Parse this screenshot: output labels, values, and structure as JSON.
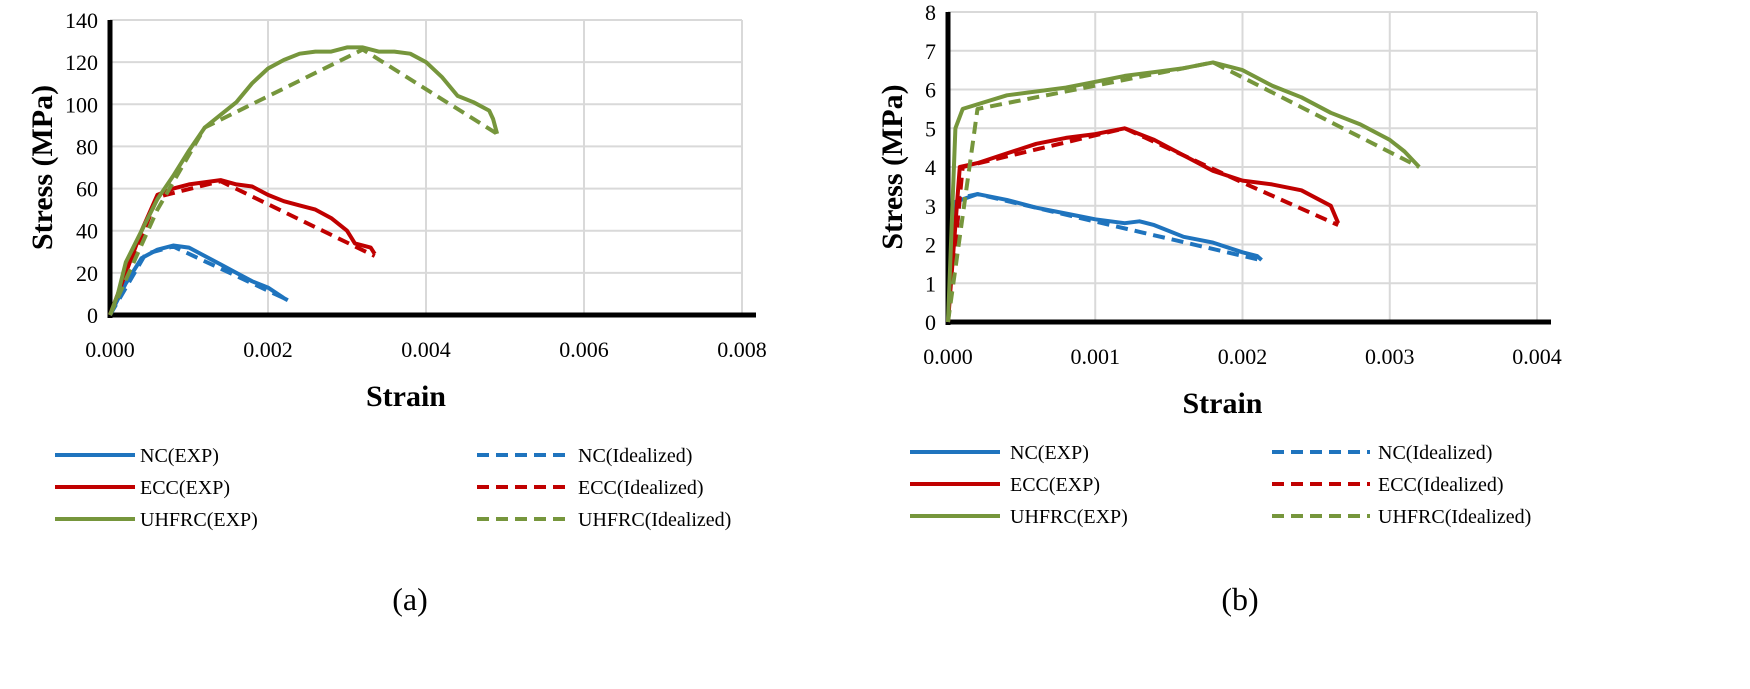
{
  "colors": {
    "NC": "#1F74BE",
    "ECC": "#C00000",
    "UHFRC": "#76963C",
    "grid": "#D9D9D9"
  },
  "chart_data": [
    {
      "type": "line",
      "caption": "(a)",
      "xlabel": "Strain",
      "ylabel": "Stress (MPa)",
      "xlim": [
        0,
        0.008
      ],
      "ylim": [
        0,
        140
      ],
      "xticks": [
        "0.000",
        "0.002",
        "0.004",
        "0.006",
        "0.008"
      ],
      "yticks": [
        "0",
        "20",
        "40",
        "60",
        "80",
        "100",
        "120",
        "140"
      ],
      "grid": true,
      "legend_placement": "bottom",
      "series": [
        {
          "name": "NC(EXP)",
          "group": "NC",
          "dashed": false,
          "points": [
            [
              0,
              0
            ],
            [
              0.0002,
              15
            ],
            [
              0.0004,
              27
            ],
            [
              0.0006,
              31
            ],
            [
              0.0008,
              33
            ],
            [
              0.001,
              32
            ],
            [
              0.0012,
              28
            ],
            [
              0.0014,
              24
            ],
            [
              0.0016,
              20
            ],
            [
              0.0018,
              16
            ],
            [
              0.002,
              13
            ],
            [
              0.0022,
              8
            ],
            [
              0.00225,
              7
            ]
          ]
        },
        {
          "name": "NC(Idealized)",
          "group": "NC",
          "dashed": true,
          "points": [
            [
              0,
              0
            ],
            [
              0.00045,
              29
            ],
            [
              0.0008,
              32.5
            ],
            [
              0.0022,
              8
            ]
          ]
        },
        {
          "name": "ECC(EXP)",
          "group": "ECC",
          "dashed": false,
          "points": [
            [
              0,
              0
            ],
            [
              0.0002,
              20
            ],
            [
              0.0004,
              40
            ],
            [
              0.0006,
              57
            ],
            [
              0.0008,
              60
            ],
            [
              0.001,
              62
            ],
            [
              0.0014,
              64
            ],
            [
              0.0016,
              62
            ],
            [
              0.0018,
              61
            ],
            [
              0.002,
              57
            ],
            [
              0.0022,
              54
            ],
            [
              0.0024,
              52
            ],
            [
              0.0026,
              50
            ],
            [
              0.0028,
              46
            ],
            [
              0.003,
              40
            ],
            [
              0.0031,
              34
            ],
            [
              0.0033,
              32
            ],
            [
              0.00335,
              29
            ]
          ]
        },
        {
          "name": "ECC(Idealized)",
          "group": "ECC",
          "dashed": true,
          "points": [
            [
              0,
              0
            ],
            [
              0.0006,
              56
            ],
            [
              0.0014,
              63.5
            ],
            [
              0.00335,
              28
            ]
          ]
        },
        {
          "name": "UHFRC(EXP)",
          "group": "UHFRC",
          "dashed": false,
          "points": [
            [
              0,
              0
            ],
            [
              0.0001,
              10
            ],
            [
              0.0002,
              25
            ],
            [
              0.0004,
              40
            ],
            [
              0.0006,
              55
            ],
            [
              0.0008,
              66
            ],
            [
              0.001,
              78
            ],
            [
              0.0012,
              89
            ],
            [
              0.0014,
              95
            ],
            [
              0.0016,
              101
            ],
            [
              0.0018,
              110
            ],
            [
              0.002,
              117
            ],
            [
              0.0022,
              121
            ],
            [
              0.0024,
              124
            ],
            [
              0.0026,
              125
            ],
            [
              0.0028,
              125
            ],
            [
              0.003,
              127
            ],
            [
              0.0032,
              127
            ],
            [
              0.0034,
              125
            ],
            [
              0.0036,
              125
            ],
            [
              0.0038,
              124
            ],
            [
              0.004,
              120
            ],
            [
              0.0042,
              113
            ],
            [
              0.0044,
              104
            ],
            [
              0.0046,
              101
            ],
            [
              0.0048,
              97
            ],
            [
              0.00485,
              93
            ],
            [
              0.0049,
              86
            ]
          ]
        },
        {
          "name": "UHFRC(Idealized)",
          "group": "UHFRC",
          "dashed": true,
          "points": [
            [
              0,
              0
            ],
            [
              0.0006,
              50
            ],
            [
              0.0012,
              89
            ],
            [
              0.0032,
              126
            ],
            [
              0.0049,
              86
            ]
          ]
        }
      ]
    },
    {
      "type": "line",
      "caption": "(b)",
      "xlabel": "Strain",
      "ylabel": "Stress (MPa)",
      "xlim": [
        0,
        0.004
      ],
      "ylim": [
        0,
        8
      ],
      "xticks": [
        "0.000",
        "0.001",
        "0.002",
        "0.003",
        "0.004"
      ],
      "yticks": [
        "0",
        "1",
        "2",
        "3",
        "4",
        "5",
        "6",
        "7",
        "8"
      ],
      "grid": true,
      "legend_placement": "bottom",
      "series": [
        {
          "name": "NC(EXP)",
          "group": "NC",
          "dashed": false,
          "points": [
            [
              0,
              0
            ],
            [
              5e-05,
              3.1
            ],
            [
              0.0002,
              3.3
            ],
            [
              0.0004,
              3.15
            ],
            [
              0.0006,
              2.95
            ],
            [
              0.0008,
              2.8
            ],
            [
              0.001,
              2.65
            ],
            [
              0.0012,
              2.55
            ],
            [
              0.0013,
              2.6
            ],
            [
              0.0014,
              2.5
            ],
            [
              0.0016,
              2.2
            ],
            [
              0.0018,
              2.05
            ],
            [
              0.002,
              1.8
            ],
            [
              0.0021,
              1.7
            ],
            [
              0.00213,
              1.6
            ]
          ]
        },
        {
          "name": "NC(Idealized)",
          "group": "NC",
          "dashed": true,
          "points": [
            [
              0,
              0
            ],
            [
              8e-05,
              3.2
            ],
            [
              0.0002,
              3.3
            ],
            [
              0.00212,
              1.6
            ]
          ]
        },
        {
          "name": "ECC(EXP)",
          "group": "ECC",
          "dashed": false,
          "points": [
            [
              0,
              0
            ],
            [
              8e-05,
              4.0
            ],
            [
              0.0002,
              4.1
            ],
            [
              0.0004,
              4.35
            ],
            [
              0.0006,
              4.6
            ],
            [
              0.0008,
              4.75
            ],
            [
              0.001,
              4.85
            ],
            [
              0.0012,
              5.0
            ],
            [
              0.0014,
              4.7
            ],
            [
              0.0016,
              4.3
            ],
            [
              0.0018,
              3.9
            ],
            [
              0.002,
              3.65
            ],
            [
              0.0022,
              3.55
            ],
            [
              0.0024,
              3.4
            ],
            [
              0.0026,
              3.0
            ],
            [
              0.00265,
              2.55
            ]
          ]
        },
        {
          "name": "ECC(Idealized)",
          "group": "ECC",
          "dashed": true,
          "points": [
            [
              0,
              0
            ],
            [
              0.0001,
              4.0
            ],
            [
              0.0012,
              5.0
            ],
            [
              0.002,
              3.6
            ],
            [
              0.00265,
              2.5
            ]
          ]
        },
        {
          "name": "UHFRC(EXP)",
          "group": "UHFRC",
          "dashed": false,
          "points": [
            [
              0,
              0
            ],
            [
              5e-05,
              5
            ],
            [
              0.0001,
              5.5
            ],
            [
              0.0004,
              5.85
            ],
            [
              0.0008,
              6.05
            ],
            [
              0.001,
              6.2
            ],
            [
              0.0012,
              6.35
            ],
            [
              0.0014,
              6.45
            ],
            [
              0.0016,
              6.55
            ],
            [
              0.0018,
              6.7
            ],
            [
              0.002,
              6.5
            ],
            [
              0.0022,
              6.1
            ],
            [
              0.0024,
              5.8
            ],
            [
              0.0026,
              5.4
            ],
            [
              0.0028,
              5.1
            ],
            [
              0.003,
              4.7
            ],
            [
              0.0031,
              4.4
            ],
            [
              0.0032,
              4.0
            ]
          ]
        },
        {
          "name": "UHFRC(Idealized)",
          "group": "UHFRC",
          "dashed": true,
          "points": [
            [
              0,
              0
            ],
            [
              0.0002,
              5.5
            ],
            [
              0.0018,
              6.7
            ],
            [
              0.0032,
              4.0
            ]
          ]
        }
      ]
    }
  ]
}
